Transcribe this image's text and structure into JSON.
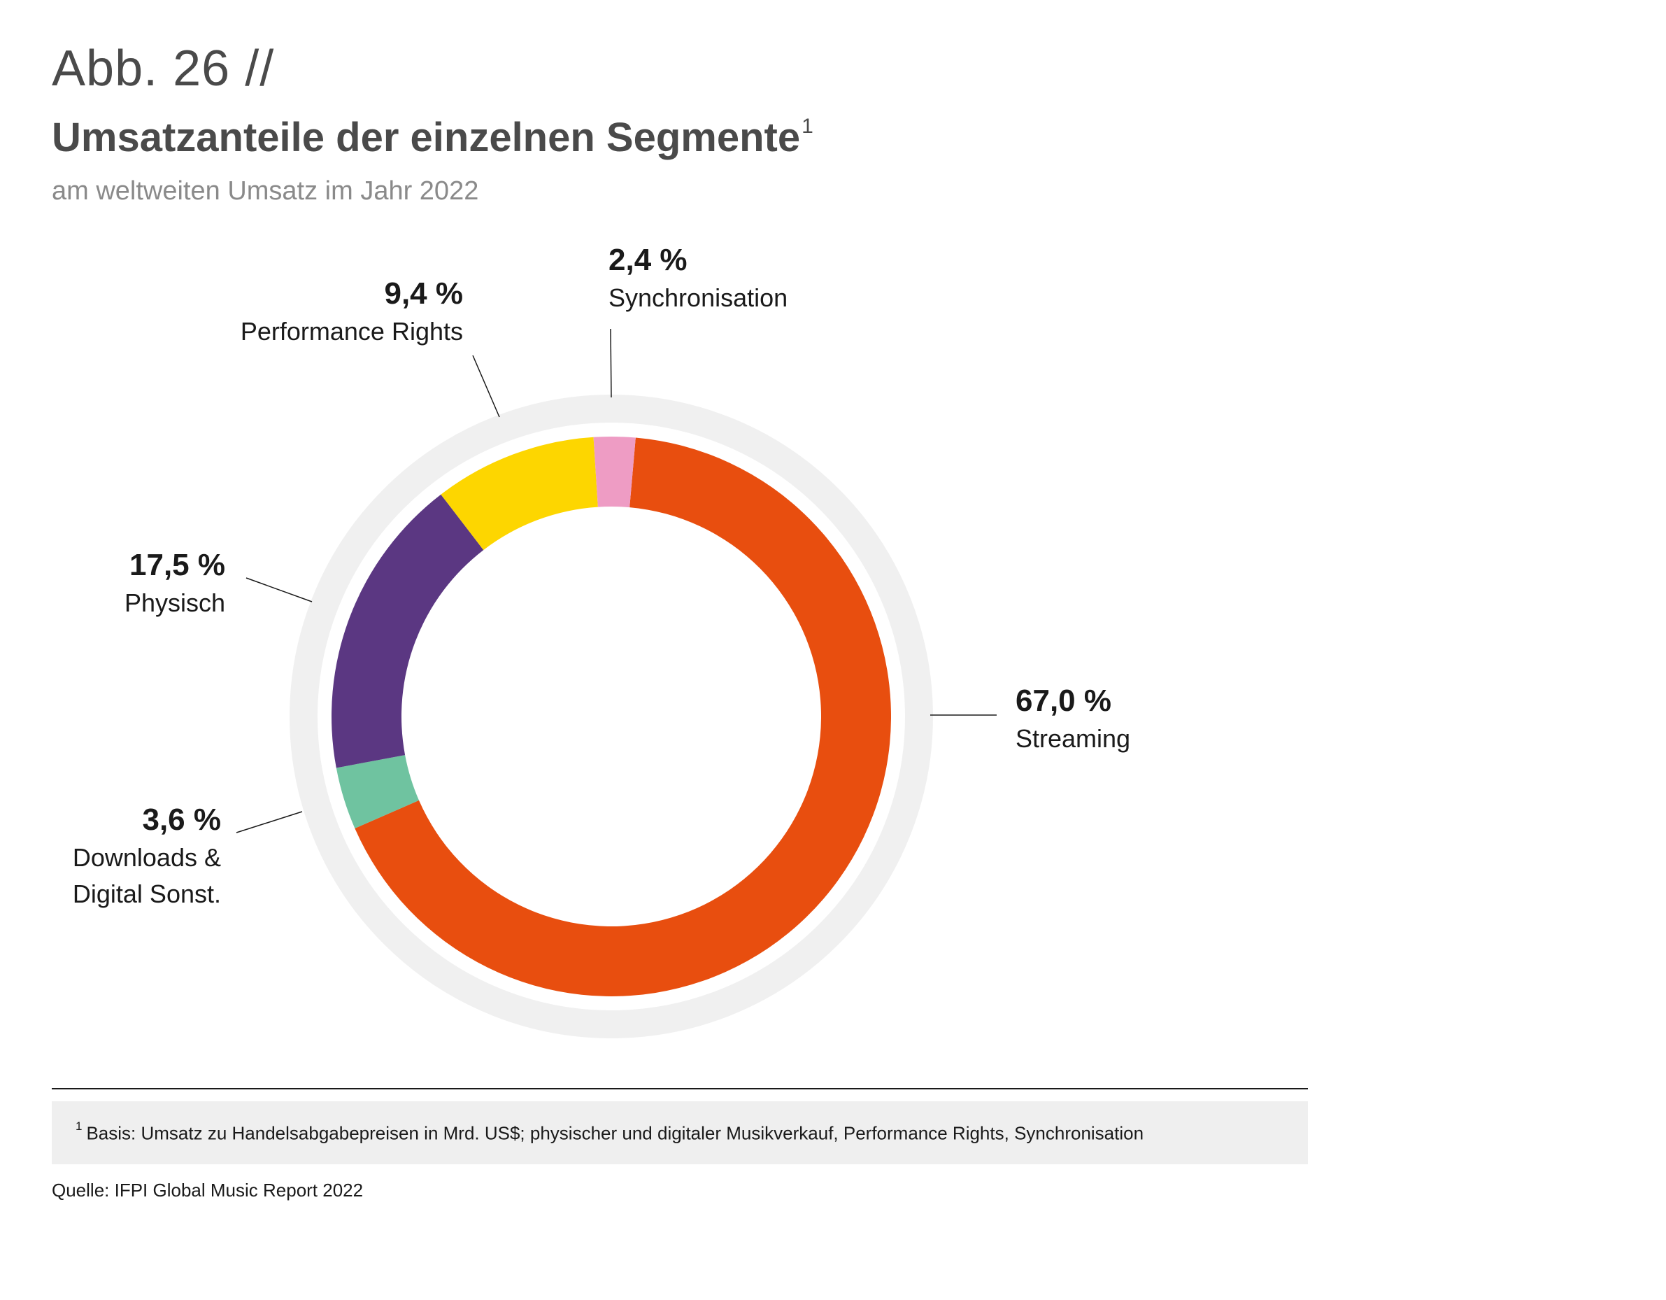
{
  "figure": {
    "number": "Abb. 26 //",
    "title": "Umsatzanteile der einzelnen Segmente",
    "title_footnote_mark": "1",
    "subtitle": "am weltweiten Umsatz im Jahr 2022"
  },
  "chart_data": {
    "type": "pie",
    "variant": "donut",
    "title": "Umsatzanteile der einzelnen Segmente",
    "subtitle": "am weltweiten Umsatz im Jahr 2022",
    "unit": "%",
    "slices": [
      {
        "name": "Streaming",
        "value": 67.0,
        "label": "67,0 %",
        "color": "#E84E0F"
      },
      {
        "name": "Downloads & Digital Sonst.",
        "name_lines": [
          "Downloads &",
          "Digital Sonst."
        ],
        "value": 3.6,
        "label": "3,6 %",
        "color": "#6FC3A0"
      },
      {
        "name": "Physisch",
        "value": 17.5,
        "label": "17,5 %",
        "color": "#5B3782"
      },
      {
        "name": "Performance Rights",
        "value": 9.4,
        "label": "9,4 %",
        "color": "#FDD600"
      },
      {
        "name": "Synchronisation",
        "value": 2.4,
        "label": "2,4 %",
        "color": "#EE9CC4"
      }
    ],
    "start_angle_deg": 5,
    "direction": "clockwise",
    "outer_ring_color": "#F0F0F0",
    "legend": "none",
    "labels": "outside"
  },
  "footnote": {
    "mark": "1",
    "text": "Basis: Umsatz zu Handelsabgabepreisen in Mrd. US$; physischer und digitaler Musikverkauf, Performance Rights, Synchronisation"
  },
  "source": "Quelle: IFPI Global Music Report 2022"
}
